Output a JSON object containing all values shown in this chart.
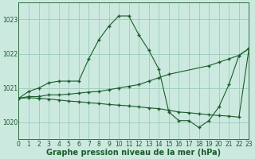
{
  "title": "Graphe pression niveau de la mer (hPa)",
  "bg_color": "#cce9e0",
  "grid_color": "#99ccbb",
  "line_color": "#1a5c2a",
  "xlim": [
    0,
    23
  ],
  "ylim": [
    1019.5,
    1023.5
  ],
  "yticks": [
    1020,
    1021,
    1022,
    1023
  ],
  "xticks": [
    0,
    1,
    2,
    3,
    4,
    5,
    6,
    7,
    8,
    9,
    10,
    11,
    12,
    13,
    14,
    15,
    16,
    17,
    18,
    19,
    20,
    21,
    22,
    23
  ],
  "line1_x": [
    0,
    1,
    2,
    3,
    4,
    5,
    6,
    7,
    8,
    9,
    10,
    11,
    12,
    13,
    14,
    15,
    16,
    17,
    18,
    19,
    20,
    21,
    22,
    23
  ],
  "line1_y": [
    1020.7,
    1020.9,
    1021.0,
    1021.15,
    1021.2,
    1021.2,
    1021.2,
    1021.85,
    1022.4,
    1022.8,
    1023.1,
    1023.1,
    1022.55,
    1022.1,
    1021.55,
    1020.3,
    1020.05,
    1020.05,
    1019.85,
    1020.05,
    1020.45,
    1021.1,
    1021.95,
    1022.15
  ],
  "line2_x": [
    0,
    1,
    2,
    3,
    4,
    5,
    6,
    7,
    8,
    9,
    10,
    11,
    12,
    13,
    14,
    15,
    19,
    20,
    21,
    22,
    23
  ],
  "line2_y": [
    1020.7,
    1020.75,
    1020.75,
    1020.8,
    1020.8,
    1020.82,
    1020.85,
    1020.88,
    1020.9,
    1020.95,
    1021.0,
    1021.05,
    1021.1,
    1021.2,
    1021.3,
    1021.4,
    1021.65,
    1021.75,
    1021.85,
    1021.95,
    1022.15
  ],
  "line3_x": [
    0,
    1,
    2,
    3,
    4,
    5,
    6,
    7,
    8,
    9,
    10,
    11,
    12,
    13,
    14,
    15,
    16,
    17,
    18,
    19,
    20,
    21,
    22,
    23
  ],
  "line3_y": [
    1020.7,
    1020.72,
    1020.7,
    1020.68,
    1020.65,
    1020.62,
    1020.6,
    1020.57,
    1020.55,
    1020.52,
    1020.5,
    1020.48,
    1020.45,
    1020.42,
    1020.4,
    1020.35,
    1020.3,
    1020.28,
    1020.25,
    1020.22,
    1020.2,
    1020.18,
    1020.15,
    1022.15
  ],
  "tick_fontsize": 5.5,
  "title_fontsize": 7.0
}
